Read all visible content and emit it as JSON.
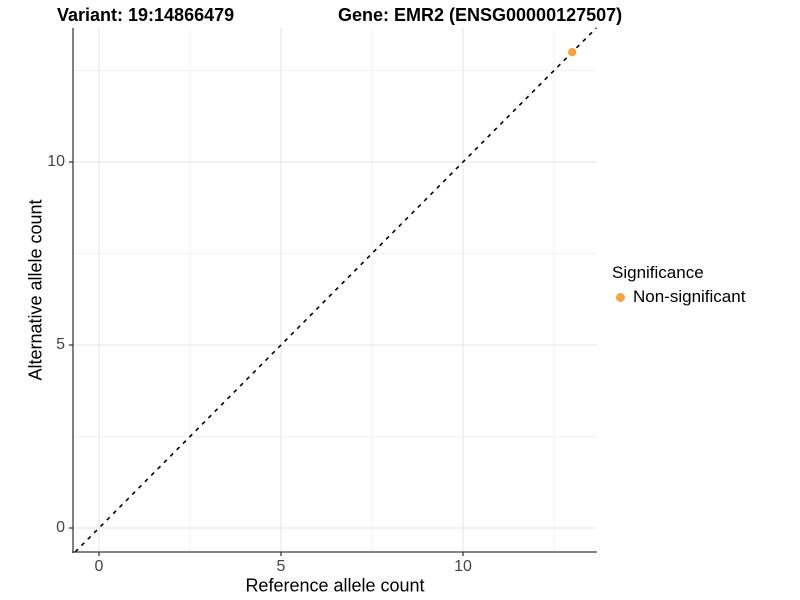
{
  "chart_data": {
    "type": "scatter",
    "title_left": "Variant: 19:14866479",
    "title_right": "Gene: EMR2 (ENSG00000127507)",
    "xlabel": "Reference allele count",
    "ylabel": "Alternative allele count",
    "xlim": [
      -0.7,
      13.7
    ],
    "ylim": [
      -0.7,
      13.7
    ],
    "x_ticks": [
      0,
      5,
      10
    ],
    "y_ticks": [
      0,
      5,
      10
    ],
    "x_minor_ticks": [
      2.5,
      7.5,
      12.5
    ],
    "y_minor_ticks": [
      2.5,
      7.5,
      12.5
    ],
    "grid": true,
    "reference_line": {
      "type": "identity",
      "equation": "y = x",
      "style": "dashed",
      "color": "#000000"
    },
    "series": [
      {
        "name": "Non-significant",
        "color": "#F9A242",
        "points": [
          {
            "x": 13,
            "y": 13
          }
        ]
      }
    ],
    "legend": {
      "title": "Significance",
      "position": "right",
      "entries": [
        {
          "label": "Non-significant",
          "color": "#F9A242"
        }
      ]
    },
    "colors": {
      "grid_major": "#E4E4E4",
      "grid_minor": "#F1F1F1",
      "axis_line": "#3C3C3C",
      "tick_label": "#444444",
      "background": "#FFFFFF"
    }
  }
}
